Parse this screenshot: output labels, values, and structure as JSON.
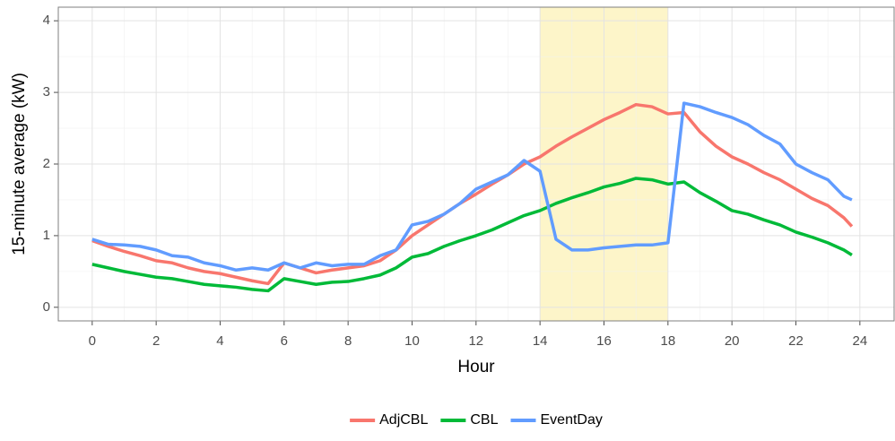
{
  "chart_data": {
    "type": "line",
    "xlabel": "Hour",
    "ylabel": "15-minute average (kW)",
    "x": [
      0,
      0.5,
      1,
      1.5,
      2,
      2.5,
      3,
      3.5,
      4,
      4.5,
      5,
      5.5,
      6,
      6.5,
      7,
      7.5,
      8,
      8.5,
      9,
      9.5,
      10,
      10.5,
      11,
      11.5,
      12,
      12.5,
      13,
      13.5,
      14,
      14.5,
      15,
      15.5,
      16,
      16.5,
      17,
      17.5,
      18,
      18.5,
      19,
      19.5,
      20,
      20.5,
      21,
      21.5,
      22,
      22.5,
      23,
      23.5,
      23.75
    ],
    "series": [
      {
        "name": "AdjCBL",
        "color": "#f8766d",
        "values": [
          0.93,
          0.85,
          0.78,
          0.72,
          0.65,
          0.62,
          0.55,
          0.5,
          0.47,
          0.42,
          0.37,
          0.33,
          0.62,
          0.55,
          0.48,
          0.52,
          0.55,
          0.58,
          0.65,
          0.8,
          1.0,
          1.15,
          1.3,
          1.45,
          1.58,
          1.72,
          1.85,
          2.0,
          2.1,
          2.25,
          2.38,
          2.5,
          2.62,
          2.72,
          2.83,
          2.8,
          2.7,
          2.72,
          2.45,
          2.25,
          2.1,
          2.0,
          1.88,
          1.78,
          1.65,
          1.52,
          1.42,
          1.25,
          1.13
        ]
      },
      {
        "name": "CBL",
        "color": "#00ba38",
        "values": [
          0.6,
          0.55,
          0.5,
          0.46,
          0.42,
          0.4,
          0.36,
          0.32,
          0.3,
          0.28,
          0.25,
          0.23,
          0.4,
          0.36,
          0.32,
          0.35,
          0.36,
          0.4,
          0.45,
          0.55,
          0.7,
          0.75,
          0.85,
          0.93,
          1.0,
          1.08,
          1.18,
          1.28,
          1.35,
          1.45,
          1.53,
          1.6,
          1.68,
          1.73,
          1.8,
          1.78,
          1.72,
          1.75,
          1.6,
          1.48,
          1.35,
          1.3,
          1.22,
          1.15,
          1.05,
          0.98,
          0.9,
          0.8,
          0.73
        ]
      },
      {
        "name": "EventDay",
        "color": "#619cff",
        "values": [
          0.95,
          0.88,
          0.87,
          0.85,
          0.8,
          0.72,
          0.7,
          0.62,
          0.58,
          0.52,
          0.55,
          0.52,
          0.62,
          0.55,
          0.62,
          0.58,
          0.6,
          0.6,
          0.72,
          0.8,
          1.15,
          1.2,
          1.3,
          1.45,
          1.65,
          1.75,
          1.85,
          2.05,
          1.9,
          0.95,
          0.8,
          0.8,
          0.83,
          0.85,
          0.87,
          0.87,
          0.9,
          2.85,
          2.8,
          2.72,
          2.65,
          2.55,
          2.4,
          2.28,
          2.0,
          1.88,
          1.78,
          1.55,
          1.5
        ]
      }
    ],
    "shade": {
      "xmin": 14,
      "xmax": 18,
      "color": "#fdf5c9"
    },
    "xlim": [
      -1.06,
      25.07
    ],
    "ylim": [
      -0.19,
      4.19
    ],
    "xticks": [
      0,
      2,
      4,
      6,
      8,
      10,
      12,
      14,
      16,
      18,
      20,
      22,
      24
    ],
    "yticks": [
      0,
      1,
      2,
      3,
      4
    ],
    "grid": true,
    "legend": "bottom"
  }
}
